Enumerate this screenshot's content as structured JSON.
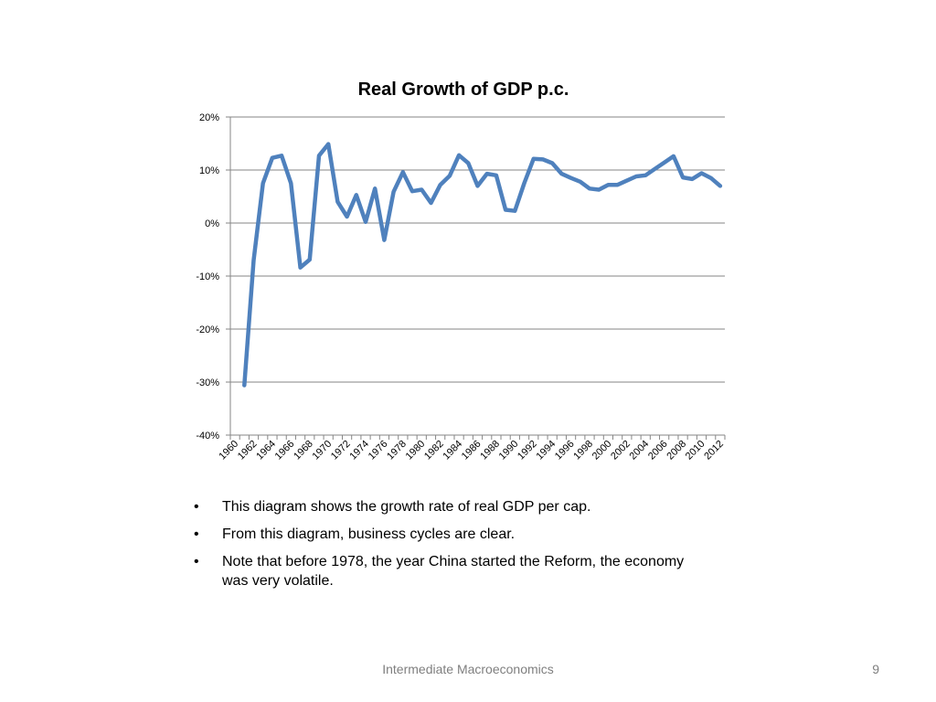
{
  "chart_data": {
    "type": "line",
    "title": "Real Growth of GDP p.c.",
    "xlabel": "",
    "ylabel": "",
    "ylim": [
      -40,
      20
    ],
    "y_ticks": [
      "20%",
      "10%",
      "0%",
      "-10%",
      "-20%",
      "-30%",
      "-40%"
    ],
    "y_tick_values": [
      20,
      10,
      0,
      -10,
      -20,
      -30,
      -40
    ],
    "x_tick_labels": [
      "1960",
      "1962",
      "1964",
      "1966",
      "1968",
      "1970",
      "1972",
      "1974",
      "1976",
      "1978",
      "1980",
      "1982",
      "1984",
      "1986",
      "1988",
      "1990",
      "1992",
      "1994",
      "1996",
      "1998",
      "2000",
      "2002",
      "2004",
      "2006",
      "2008",
      "2010",
      "2012"
    ],
    "grid": true,
    "legend": "none",
    "series_color": "#4f81bd",
    "series": [
      {
        "x": [
          1961,
          1962,
          1963,
          1964,
          1965,
          1966,
          1967,
          1968,
          1969,
          1970,
          1971,
          1972,
          1973,
          1974,
          1975,
          1976,
          1977,
          1978,
          1979,
          1980,
          1981,
          1982,
          1983,
          1984,
          1985,
          1986,
          1987,
          1988,
          1989,
          1990,
          1991,
          1992,
          1993,
          1994,
          1995,
          1996,
          1997,
          1998,
          1999,
          2000,
          2001,
          2002,
          2003,
          2004,
          2005,
          2006,
          2007,
          2008,
          2009,
          2010,
          2011,
          2012
        ],
        "values": [
          -30.6,
          -7.0,
          7.5,
          12.3,
          12.7,
          7.5,
          -8.4,
          -6.9,
          12.7,
          14.9,
          4.0,
          1.2,
          5.3,
          0.2,
          6.5,
          -3.2,
          5.9,
          9.6,
          6.0,
          6.3,
          3.8,
          7.2,
          8.9,
          12.8,
          11.3,
          7.0,
          9.3,
          9.0,
          2.5,
          2.3,
          7.5,
          12.1,
          12.0,
          11.3,
          9.3,
          8.5,
          7.8,
          6.5,
          6.3,
          7.2,
          7.2,
          8.0,
          8.8,
          9.0,
          10.2,
          11.4,
          12.6,
          8.6,
          8.3,
          9.4,
          8.5,
          7.0
        ]
      }
    ]
  },
  "bullets": [
    "This diagram shows the growth rate of real GDP per cap.",
    "From this diagram, business cycles are clear.",
    "Note that before 1978, the year China started the Reform, the economy was very volatile."
  ],
  "bullet_symbol": "•",
  "footer": {
    "center": "Intermediate Macroeconomics",
    "page": "9"
  }
}
